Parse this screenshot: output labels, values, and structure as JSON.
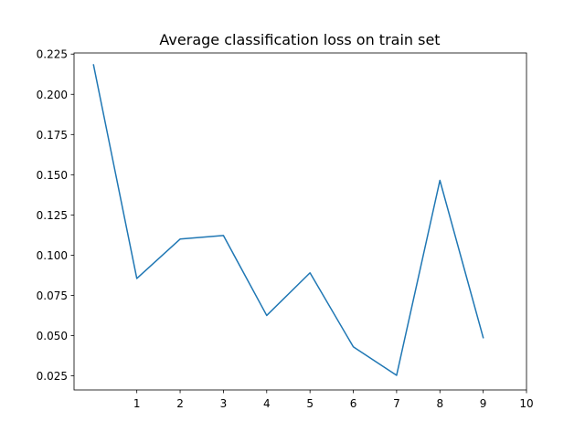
{
  "chart_data": {
    "type": "line",
    "title": "Average classification loss on train set",
    "xlabel": "",
    "ylabel": "",
    "x": [
      0,
      1,
      2,
      3,
      4,
      5,
      6,
      7,
      8,
      9
    ],
    "series": [
      {
        "values": [
          0.2183,
          0.0855,
          0.11,
          0.1122,
          0.0625,
          0.089,
          0.043,
          0.0253,
          0.1465,
          0.0487
        ],
        "color": "#1f77b4"
      }
    ],
    "xlim": [
      -0.45,
      10
    ],
    "ylim": [
      0.0162,
      0.2257
    ],
    "xticks": [
      1,
      2,
      3,
      4,
      5,
      6,
      7,
      8,
      9,
      10
    ],
    "xtick_labels": [
      "1",
      "2",
      "3",
      "4",
      "5",
      "6",
      "7",
      "8",
      "9",
      "10"
    ],
    "yticks": [
      0.025,
      0.05,
      0.075,
      0.1,
      0.125,
      0.15,
      0.175,
      0.2,
      0.225
    ],
    "ytick_labels": [
      "0.025",
      "0.050",
      "0.075",
      "0.100",
      "0.125",
      "0.150",
      "0.175",
      "0.200",
      "0.225"
    ],
    "grid": false,
    "legend": "none"
  }
}
